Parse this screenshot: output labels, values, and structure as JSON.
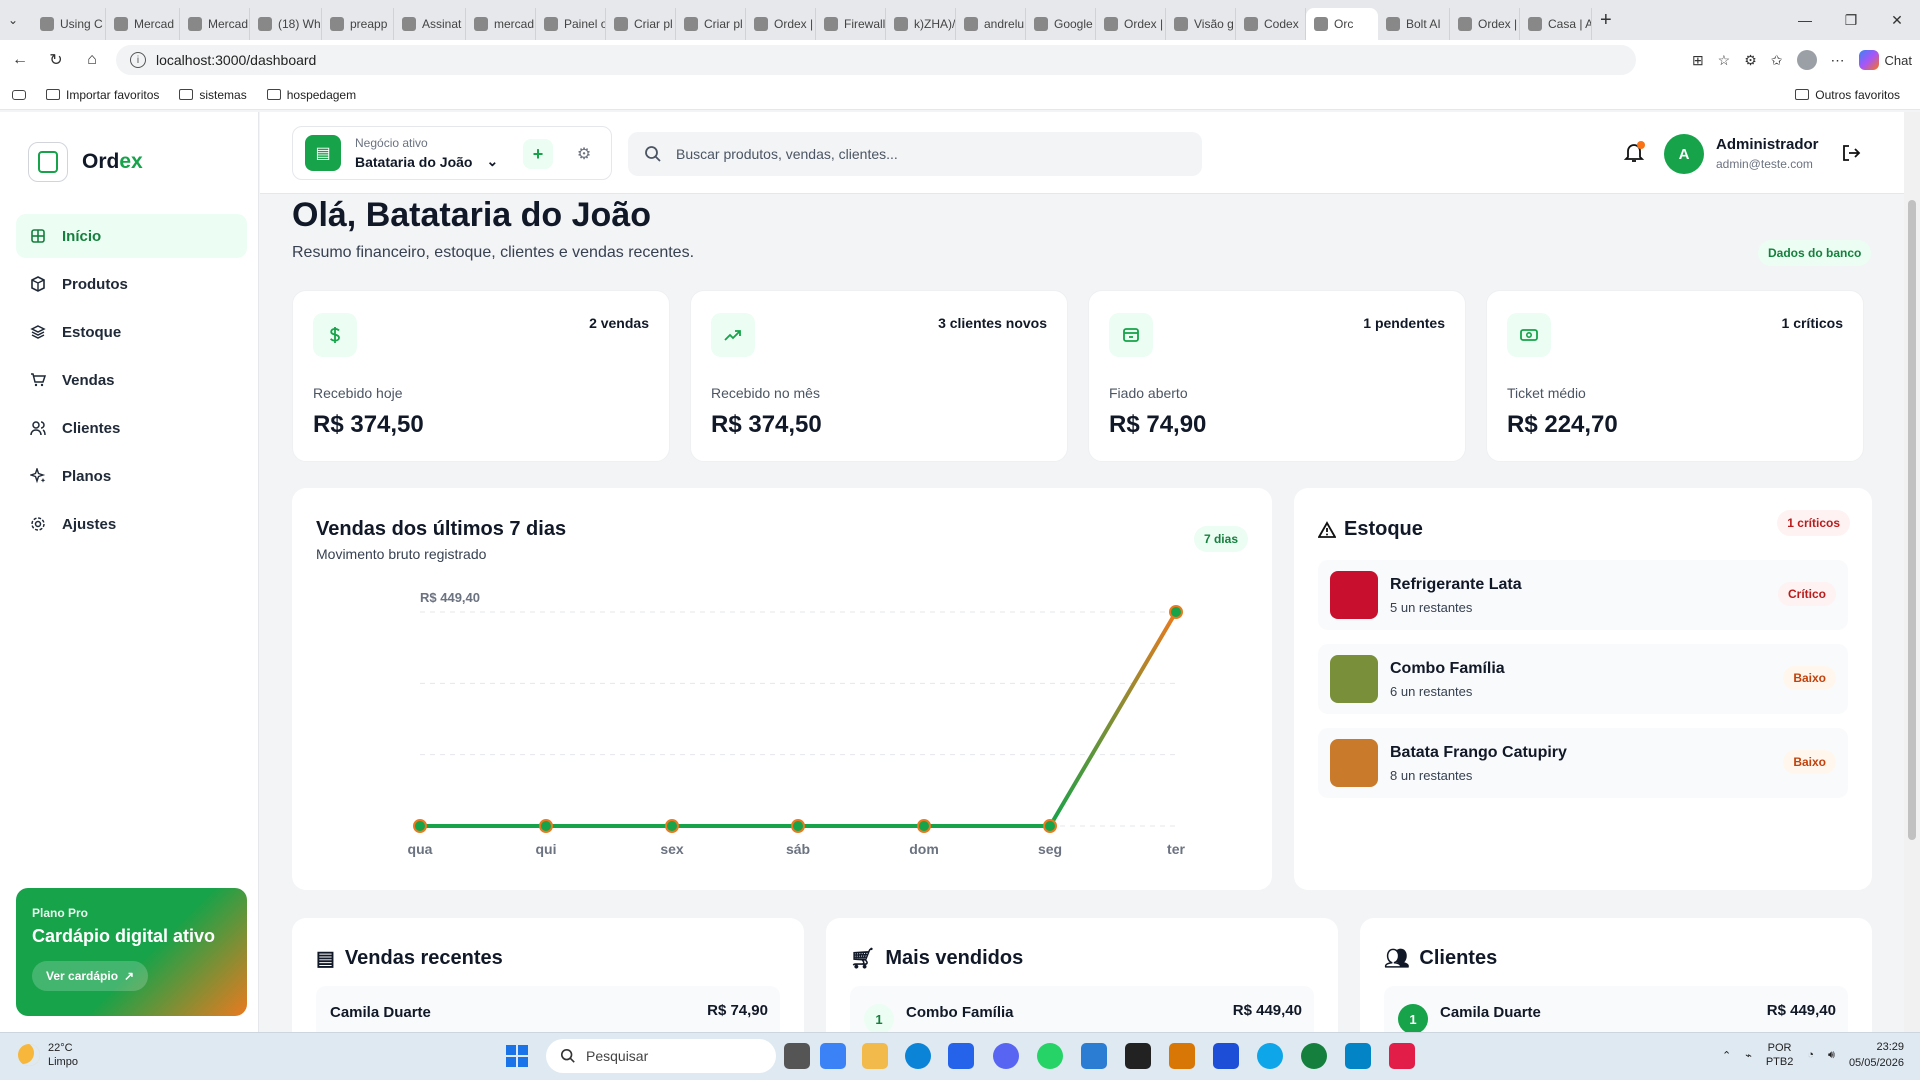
{
  "browser": {
    "tabs": [
      {
        "label": "Using C"
      },
      {
        "label": "Mercad"
      },
      {
        "label": "Mercad"
      },
      {
        "label": "(18) Wh"
      },
      {
        "label": "preapp"
      },
      {
        "label": "Assinat"
      },
      {
        "label": "mercad"
      },
      {
        "label": "Painel o"
      },
      {
        "label": "Criar pl"
      },
      {
        "label": "Criar pl"
      },
      {
        "label": "Ordex |"
      },
      {
        "label": "Firewall"
      },
      {
        "label": "k)ZHA)/"
      },
      {
        "label": "andrelu"
      },
      {
        "label": "Google"
      },
      {
        "label": "Ordex |"
      },
      {
        "label": "Visão g"
      },
      {
        "label": "Codex"
      },
      {
        "label": "Orc",
        "active": true
      },
      {
        "label": "Bolt AI"
      },
      {
        "label": "Ordex |"
      },
      {
        "label": "Casa | A"
      }
    ],
    "url": "localhost:3000/dashboard",
    "chat_label": "Chat",
    "bookmarks": {
      "import": "Importar favoritos",
      "items": [
        "sistemas",
        "hospedagem"
      ],
      "others": "Outros favoritos"
    }
  },
  "sidebar": {
    "brand_a": "Ord",
    "brand_b": "ex",
    "items": [
      {
        "label": "Início",
        "icon": "grid-icon",
        "active": true
      },
      {
        "label": "Produtos",
        "icon": "box-icon"
      },
      {
        "label": "Estoque",
        "icon": "layers-icon"
      },
      {
        "label": "Vendas",
        "icon": "cart-icon"
      },
      {
        "label": "Clientes",
        "icon": "users-icon"
      },
      {
        "label": "Planos",
        "icon": "sparkles-icon"
      },
      {
        "label": "Ajustes",
        "icon": "gear-icon"
      }
    ],
    "plan": {
      "label": "Plano Pro",
      "title": "Cardápio digital ativo",
      "button": "Ver cardápio"
    }
  },
  "topbar": {
    "business_label": "Negócio ativo",
    "business_name": "Batataria do João",
    "add": "+",
    "search_placeholder": "Buscar produtos, vendas, clientes...",
    "user_initial": "A",
    "user_name": "Administrador",
    "user_email": "admin@teste.com"
  },
  "main": {
    "greeting": "Olá, Batataria do João",
    "subtitle": "Resumo financeiro, estoque, clientes e vendas recentes.",
    "data_source": "Dados do banco",
    "kpis": [
      {
        "label": "Recebido hoje",
        "value": "R$ 374,50",
        "badge": "2 vendas",
        "icon": "dollar-icon"
      },
      {
        "label": "Recebido no mês",
        "value": "R$ 374,50",
        "badge": "3 clientes novos",
        "icon": "trending-up-icon"
      },
      {
        "label": "Fiado aberto",
        "value": "R$ 74,90",
        "badge": "1 pendentes",
        "icon": "wallet-icon"
      },
      {
        "label": "Ticket médio",
        "value": "R$ 224,70",
        "badge": "1 críticos",
        "icon": "banknote-icon"
      }
    ],
    "sales_chart": {
      "title": "Vendas dos últimos 7 dias",
      "subtitle": "Movimento bruto registrado",
      "badge": "7 dias",
      "max_label": "R$ 449,40"
    },
    "stock": {
      "title": "Estoque",
      "badge": "1 críticos",
      "items": [
        {
          "name": "Refrigerante Lata",
          "qty": "5 un restantes",
          "status": "Crítico",
          "level": "crit",
          "color": "#c8102e"
        },
        {
          "name": "Combo Família",
          "qty": "6 un restantes",
          "status": "Baixo",
          "level": "low",
          "color": "#7a8f3a"
        },
        {
          "name": "Batata Frango Catupiry",
          "qty": "8 un restantes",
          "status": "Baixo",
          "level": "low",
          "color": "#c97a2a"
        }
      ]
    },
    "recent_sales": {
      "title": "Vendas recentes",
      "first_name": "Camila Duarte",
      "first_value": "R$ 74,90"
    },
    "top_sellers": {
      "title": "Mais vendidos",
      "first_rank": "1",
      "first_name": "Combo Família",
      "first_value": "R$ 449,40"
    },
    "clients": {
      "title": "Clientes",
      "first_rank": "1",
      "first_name": "Camila Duarte",
      "first_value": "R$ 449,40"
    }
  },
  "taskbar": {
    "temp": "22°C",
    "weather": "Limpo",
    "search": "Pesquisar",
    "lang": "POR",
    "layout": "PTB2",
    "time": "23:29",
    "date": "05/05/2026"
  },
  "chart_data": {
    "type": "line",
    "categories": [
      "qua",
      "qui",
      "sex",
      "sáb",
      "dom",
      "seg",
      "ter"
    ],
    "values": [
      0,
      0,
      0,
      0,
      0,
      0,
      449.4
    ],
    "ylim": [
      0,
      449.4
    ],
    "grid": true,
    "colors": {
      "line": "#16a34a",
      "last_segment": "#ea7a1f"
    }
  }
}
